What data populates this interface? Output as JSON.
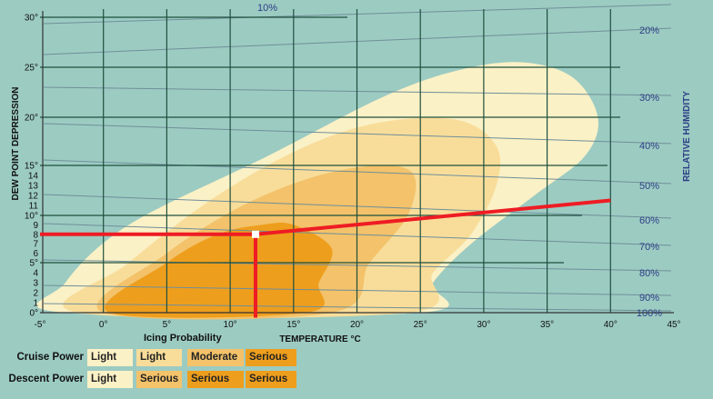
{
  "colors": {
    "background": "#9ccbc2",
    "grid_dark": "#1f4f3d",
    "grid_light": "#6f8f9a",
    "light": "#fbf1c6",
    "light_2": "#f8dd9a",
    "moderate": "#f3c26a",
    "serious": "#ee9e1d",
    "marker_line": "#ee1c24",
    "rh_text": "#2d3f86"
  },
  "chart_data": {
    "type": "area",
    "title": "",
    "xlabel": "TEMPERATURE °C",
    "ylabel": "DEW POINT DEPRESSION",
    "y2label": "RELATIVE HUMIDITY",
    "xlim": [
      -5,
      45
    ],
    "ylim": [
      0,
      30
    ],
    "x_ticks": [
      "-5°",
      "0°",
      "5°",
      "10°",
      "15°",
      "20°",
      "25°",
      "30°",
      "35°",
      "40°",
      "45°"
    ],
    "y_ticks": [
      "0°",
      "1",
      "2",
      "3",
      "4",
      "5°",
      "6",
      "7",
      "8",
      "9",
      "10°",
      "11",
      "12",
      "13",
      "14",
      "15°",
      "20°",
      "25°",
      "30°"
    ],
    "grid": true,
    "relative_humidity_lines": [
      {
        "label": "10%"
      },
      {
        "label": "20%"
      },
      {
        "label": "30%"
      },
      {
        "label": "40%"
      },
      {
        "label": "50%"
      },
      {
        "label": "60%"
      },
      {
        "label": "70%"
      },
      {
        "label": "80%"
      },
      {
        "label": "90%"
      },
      {
        "label": "100%"
      }
    ],
    "regions": [
      {
        "name": "Light",
        "points": [
          [
            -3,
            0
          ],
          [
            -3,
            3
          ],
          [
            2,
            9
          ],
          [
            13,
            16
          ],
          [
            22,
            22
          ],
          [
            28,
            24.7
          ],
          [
            33,
            25.5
          ],
          [
            37,
            24
          ],
          [
            39,
            20
          ],
          [
            38,
            16
          ],
          [
            34,
            12
          ],
          [
            29,
            7
          ],
          [
            26,
            3
          ],
          [
            25,
            0
          ]
        ]
      },
      {
        "name": "Light_2",
        "points": [
          [
            -2,
            0
          ],
          [
            2,
            5
          ],
          [
            9,
            12
          ],
          [
            16,
            17
          ],
          [
            22,
            19.5
          ],
          [
            28,
            19.7
          ],
          [
            31,
            17
          ],
          [
            31,
            13
          ],
          [
            29,
            8
          ],
          [
            26,
            4
          ],
          [
            24,
            0
          ]
        ]
      },
      {
        "name": "Moderate",
        "points": [
          [
            0,
            0
          ],
          [
            5,
            6
          ],
          [
            11,
            11
          ],
          [
            17,
            14
          ],
          [
            22,
            15
          ],
          [
            24.5,
            14
          ],
          [
            24,
            10
          ],
          [
            21,
            5
          ],
          [
            18,
            0
          ]
        ]
      },
      {
        "name": "Serious",
        "points": [
          [
            0.5,
            0
          ],
          [
            5,
            5
          ],
          [
            9,
            8
          ],
          [
            12.5,
            9
          ],
          [
            15,
            9
          ],
          [
            18,
            6.5
          ],
          [
            17,
            3
          ],
          [
            16,
            0
          ]
        ]
      }
    ],
    "annotation_path": {
      "horizontal": [
        [
          -5,
          8
        ],
        [
          12,
          8
        ]
      ],
      "vertical": [
        [
          12,
          8
        ],
        [
          12,
          -0.5
        ]
      ],
      "sloped": [
        [
          12,
          8
        ],
        [
          40,
          11.5
        ]
      ],
      "point": [
        12,
        8
      ]
    }
  },
  "legend": {
    "title": "Icing Probability",
    "rows": [
      {
        "label": "Cruise Power",
        "cells": [
          "Light",
          "Light",
          "Moderate",
          "Serious"
        ]
      },
      {
        "label": "Descent Power",
        "cells": [
          "Light",
          "Serious",
          "Serious",
          "Serious"
        ]
      }
    ]
  }
}
